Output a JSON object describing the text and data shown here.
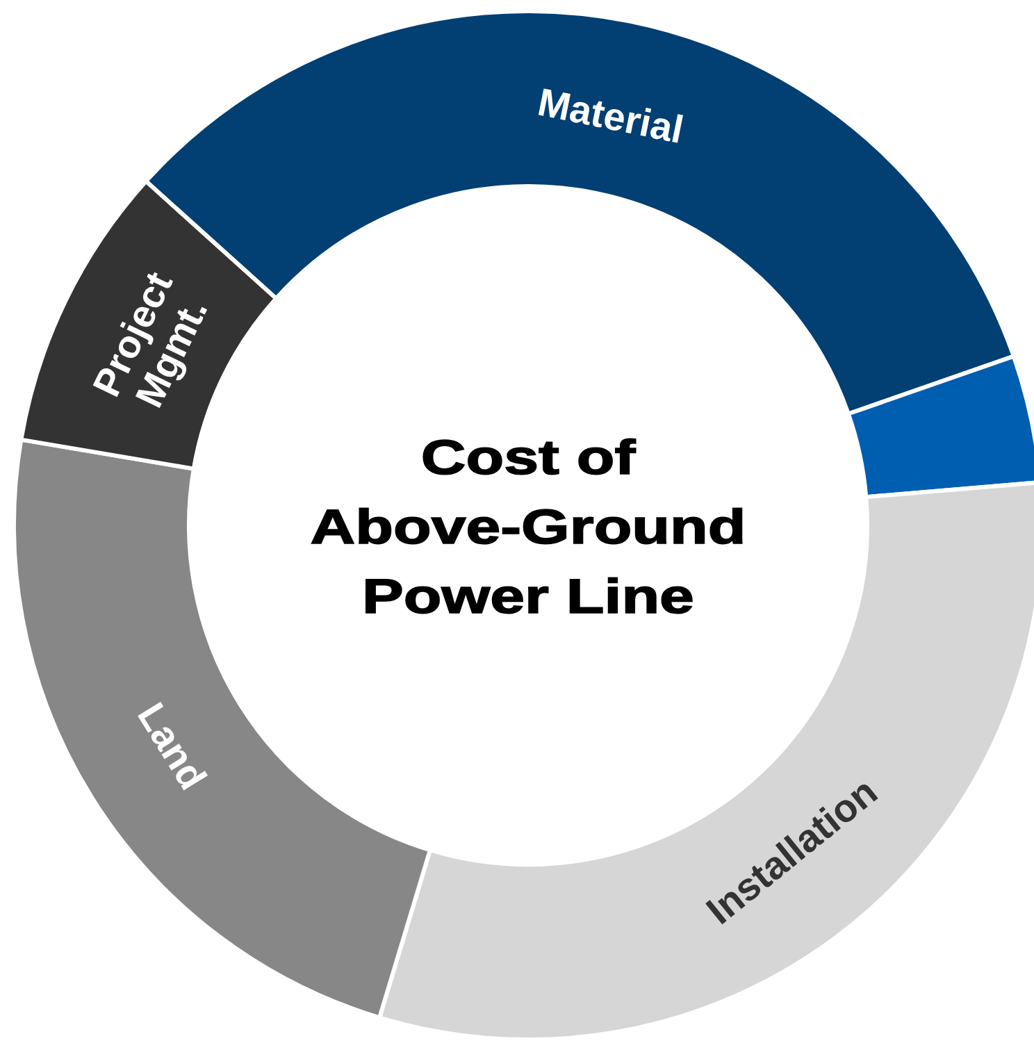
{
  "chart_data": {
    "type": "donut",
    "title": "Cost of Above-Ground Power Line",
    "categories": [
      "Material",
      null,
      "Installation",
      "Land",
      "Project Mgmt."
    ],
    "values": [
      33,
      4,
      31,
      23,
      9
    ],
    "colors": [
      "#023f73",
      "#005eb0",
      "#d6d6d6",
      "#878787",
      "#333333"
    ]
  }
}
